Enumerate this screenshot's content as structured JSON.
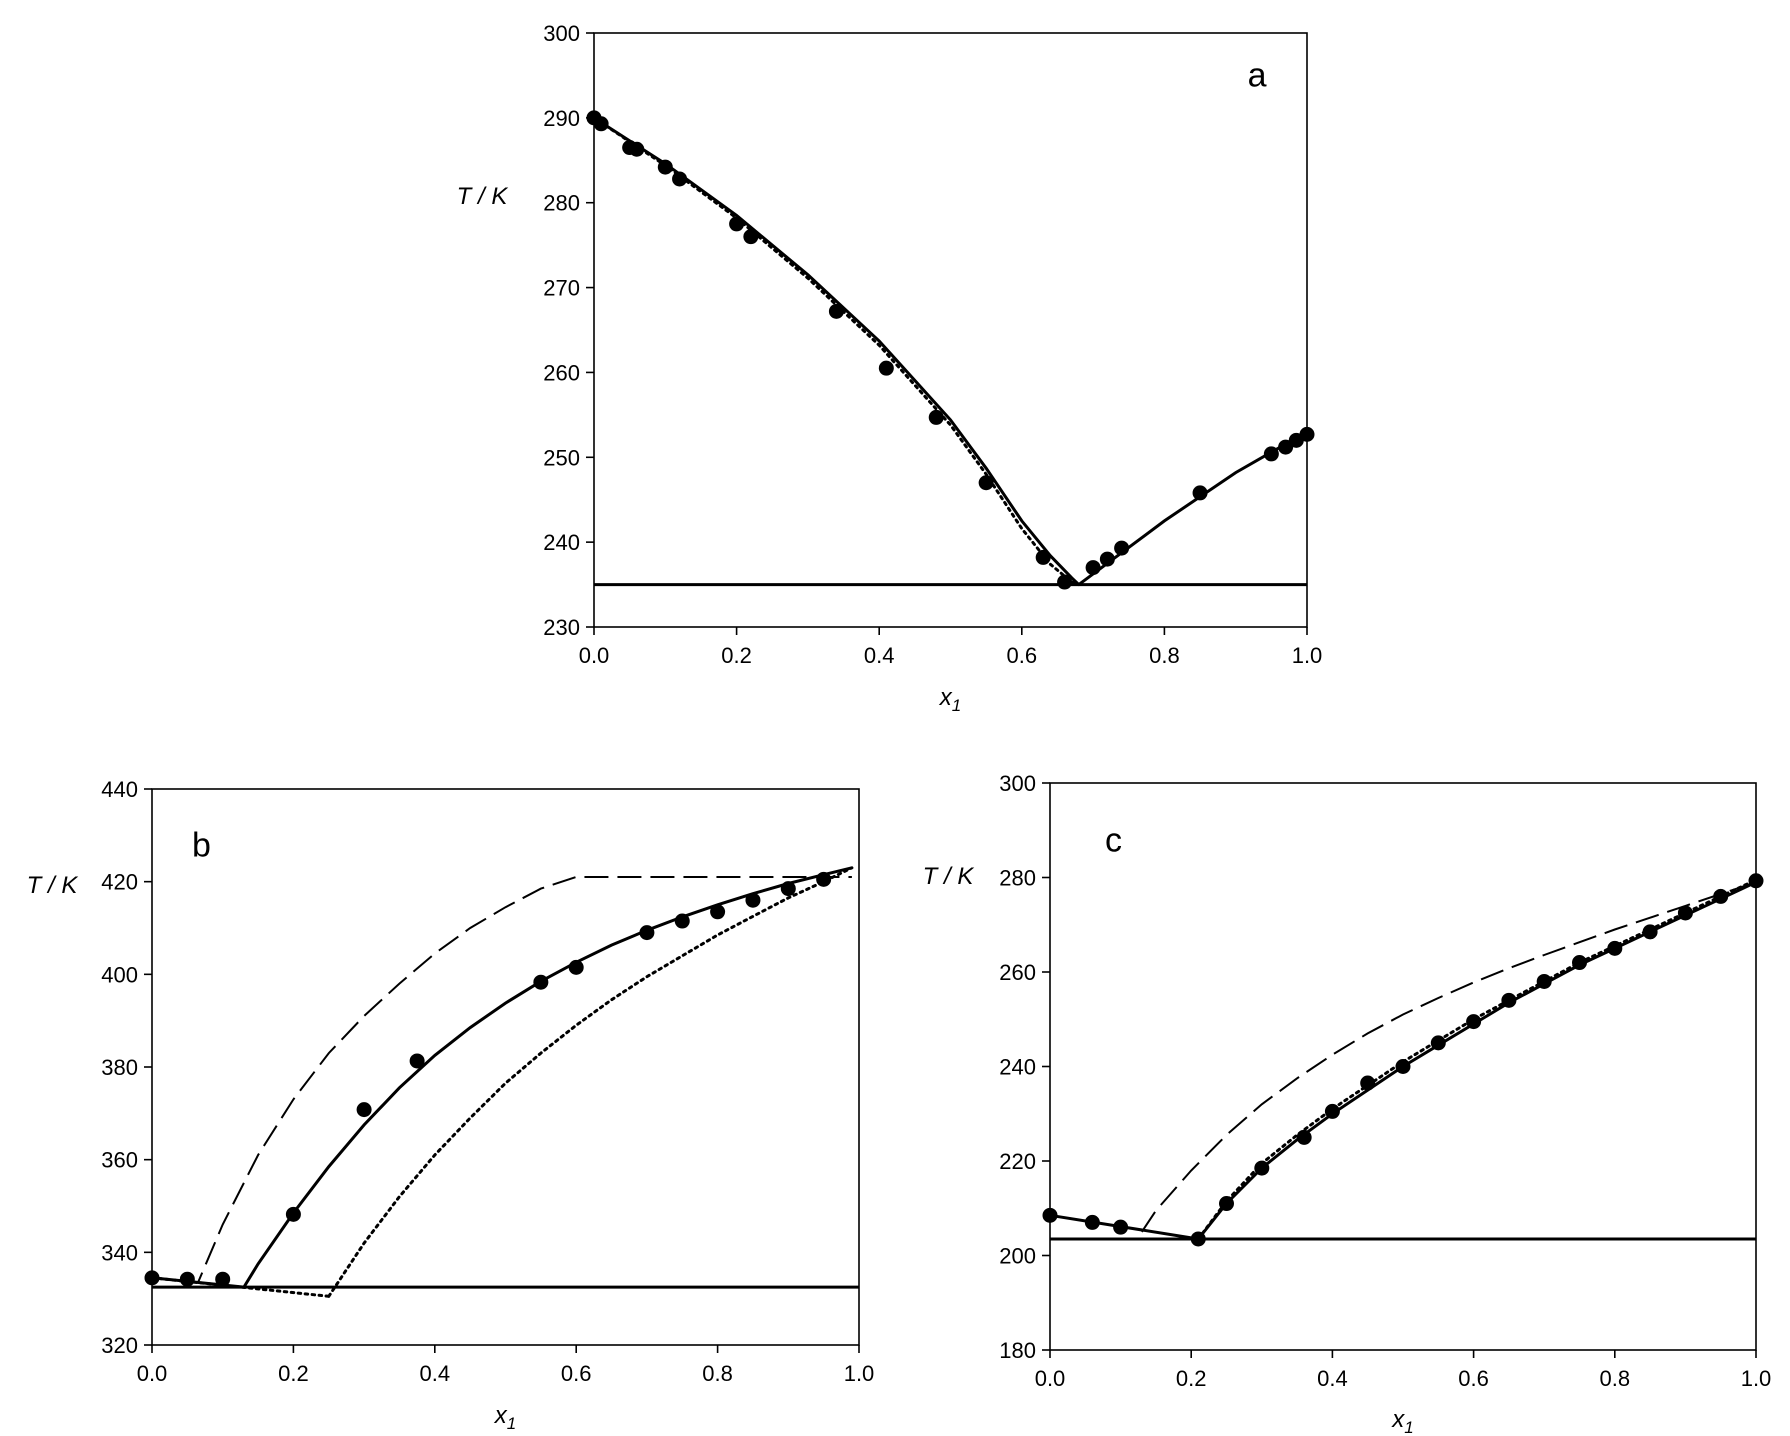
{
  "chart_data": [
    {
      "type": "scatter",
      "panel": "a",
      "xlabel": "x1",
      "ylabel": "T / K",
      "xlim": [
        0,
        1
      ],
      "ylim": [
        230,
        300
      ],
      "xticks": [
        "0.0",
        "0.2",
        "0.4",
        "0.6",
        "0.8",
        "1.0"
      ],
      "yticks": [
        "230",
        "240",
        "250",
        "260",
        "270",
        "280",
        "290",
        "300"
      ],
      "points": {
        "x": [
          0.0,
          0.01,
          0.05,
          0.06,
          0.1,
          0.12,
          0.2,
          0.22,
          0.34,
          0.41,
          0.48,
          0.55,
          0.63,
          0.66,
          0.7,
          0.72,
          0.74,
          0.85,
          0.95,
          0.97,
          0.985,
          1.0
        ],
        "y": [
          290,
          289.3,
          286.5,
          286.3,
          284.2,
          282.8,
          277.5,
          276,
          267.2,
          260.5,
          254.7,
          247,
          238.2,
          235.3,
          237,
          238,
          239.3,
          245.8,
          250.4,
          251.2,
          252,
          252.7
        ]
      },
      "lines": [
        {
          "style": "solid",
          "x": [
            0.0,
            0.1,
            0.2,
            0.3,
            0.4,
            0.5,
            0.55,
            0.6,
            0.64,
            0.67,
            0.68
          ],
          "y": [
            290,
            284.6,
            278.5,
            271.5,
            263.7,
            254.4,
            248.7,
            242.5,
            238.4,
            235.8,
            235
          ]
        },
        {
          "style": "dotted",
          "x": [
            0.0,
            0.1,
            0.2,
            0.3,
            0.4,
            0.5,
            0.55,
            0.6,
            0.64,
            0.67,
            0.68
          ],
          "y": [
            290,
            284.4,
            278.2,
            271.1,
            263.2,
            253.8,
            248,
            241.6,
            237.4,
            235.3,
            235
          ]
        },
        {
          "style": "solid",
          "x": [
            0.68,
            0.8,
            0.9,
            1.0
          ],
          "y": [
            235,
            242.5,
            248.2,
            253
          ]
        },
        {
          "style": "solid",
          "x": [
            0.0,
            1.0
          ],
          "y": [
            235,
            235
          ]
        }
      ],
      "panel_label_pos": [
        0.93,
        0.93
      ]
    },
    {
      "type": "scatter",
      "panel": "b",
      "xlabel": "x1",
      "ylabel": "T / K",
      "xlim": [
        0,
        1
      ],
      "ylim": [
        320,
        440
      ],
      "xticks": [
        "0.0",
        "0.2",
        "0.4",
        "0.6",
        "0.8",
        "1.0"
      ],
      "yticks": [
        "320",
        "340",
        "360",
        "380",
        "400",
        "420",
        "440"
      ],
      "points": {
        "x": [
          0.0,
          0.05,
          0.1,
          0.2,
          0.3,
          0.375,
          0.55,
          0.6,
          0.7,
          0.75,
          0.8,
          0.85,
          0.9,
          0.95
        ],
        "y": [
          334.5,
          334.2,
          334.2,
          348.2,
          370.8,
          381.3,
          398.3,
          401.5,
          409,
          411.5,
          413.5,
          416,
          418.5,
          420.5
        ]
      },
      "lines": [
        {
          "style": "solid",
          "x": [
            0.0,
            0.13
          ],
          "y": [
            334.5,
            332.5
          ]
        },
        {
          "style": "solid",
          "x": [
            0.13,
            0.15,
            0.2,
            0.25,
            0.3,
            0.35,
            0.4,
            0.45,
            0.5,
            0.55,
            0.6,
            0.65,
            0.7,
            0.75,
            0.8,
            0.85,
            0.9,
            0.95,
            0.99
          ],
          "y": [
            332.5,
            337.5,
            348.5,
            358.5,
            367.5,
            375.5,
            382.5,
            388.5,
            393.8,
            398.5,
            402.6,
            406.3,
            409.5,
            412.4,
            415,
            417.4,
            419.6,
            421.5,
            423
          ]
        },
        {
          "style": "dashed",
          "x": [
            0.0,
            0.065,
            0.1,
            0.15,
            0.2,
            0.25,
            0.3,
            0.35,
            0.4,
            0.45,
            0.5,
            0.55,
            0.6,
            0.99
          ],
          "y": [
            334.5,
            333.5,
            346,
            361,
            373,
            383,
            391,
            398,
            404.5,
            410,
            414.5,
            418.5,
            421,
            421
          ]
        },
        {
          "style": "dotted",
          "x": [
            0.0,
            0.25
          ],
          "y": [
            334.5,
            330.5
          ]
        },
        {
          "style": "dotted",
          "x": [
            0.25,
            0.3,
            0.35,
            0.4,
            0.45,
            0.5,
            0.55,
            0.6,
            0.65,
            0.7,
            0.75,
            0.8,
            0.85,
            0.9,
            0.95,
            0.99
          ],
          "y": [
            330.5,
            342,
            352,
            361,
            369,
            376.5,
            383,
            389,
            394.5,
            399.5,
            404,
            408.5,
            412.5,
            416.5,
            420,
            423
          ]
        },
        {
          "style": "solid",
          "x": [
            0.0,
            1.0
          ],
          "y": [
            332.5,
            332.5
          ]
        }
      ],
      "panel_label_pos": [
        0.07,
        0.9
      ]
    },
    {
      "type": "scatter",
      "panel": "c",
      "xlabel": "x1",
      "ylabel": "T / K",
      "xlim": [
        0,
        1
      ],
      "ylim": [
        180,
        300
      ],
      "xticks": [
        "0.0",
        "0.2",
        "0.4",
        "0.6",
        "0.8",
        "1.0"
      ],
      "yticks": [
        "180",
        "200",
        "220",
        "240",
        "260",
        "280",
        "300"
      ],
      "points": {
        "x": [
          0.0,
          0.06,
          0.1,
          0.21,
          0.25,
          0.3,
          0.36,
          0.4,
          0.45,
          0.5,
          0.55,
          0.6,
          0.65,
          0.7,
          0.75,
          0.8,
          0.85,
          0.9,
          0.95,
          1.0
        ],
        "y": [
          208.5,
          207,
          206,
          203.5,
          211,
          218.5,
          225,
          230.5,
          236.5,
          240,
          245,
          249.5,
          254,
          258,
          262,
          265,
          268.5,
          272.5,
          276,
          279.3
        ]
      },
      "lines": [
        {
          "style": "solid",
          "x": [
            0.0,
            0.21
          ],
          "y": [
            208.5,
            203.5
          ]
        },
        {
          "style": "solid",
          "x": [
            0.21,
            0.25,
            0.3,
            0.35,
            0.4,
            0.45,
            0.5,
            0.55,
            0.6,
            0.65,
            0.7,
            0.75,
            0.8,
            0.85,
            0.9,
            0.95,
            1.0
          ],
          "y": [
            203.5,
            211,
            218.5,
            224.5,
            230,
            235,
            240,
            244.5,
            249,
            253.5,
            257.5,
            261.5,
            265,
            268.5,
            272,
            275.5,
            279
          ]
        },
        {
          "style": "dotted",
          "x": [
            0.21,
            0.25,
            0.3,
            0.35,
            0.4,
            0.45,
            0.5,
            0.55,
            0.6,
            0.65,
            0.7,
            0.75,
            0.8,
            0.85,
            0.9,
            0.95,
            1.0
          ],
          "y": [
            203.5,
            211.5,
            219.5,
            225.5,
            231,
            236,
            241,
            245.5,
            250,
            254,
            258,
            262,
            265.5,
            269,
            272.5,
            276,
            279.5
          ]
        },
        {
          "style": "dashed",
          "x": [
            0.13,
            0.15,
            0.2,
            0.25,
            0.3,
            0.35,
            0.4,
            0.45,
            0.5,
            0.55,
            0.6,
            0.65,
            0.7,
            0.75,
            0.8,
            0.85,
            0.9,
            0.95,
            1.0
          ],
          "y": [
            205,
            209.5,
            218,
            225.5,
            232,
            237.5,
            242.5,
            247,
            251,
            254.5,
            257.8,
            260.8,
            263.6,
            266.3,
            269,
            271.5,
            274,
            276.5,
            279
          ]
        },
        {
          "style": "solid",
          "x": [
            0.0,
            1.0
          ],
          "y": [
            203.5,
            203.5
          ]
        }
      ],
      "panel_label_pos": [
        0.09,
        0.9
      ]
    }
  ]
}
